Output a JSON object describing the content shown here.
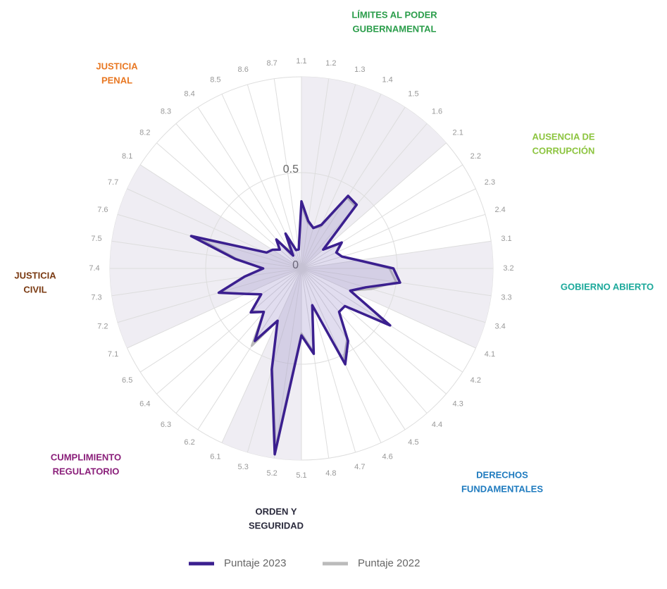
{
  "chart_data": {
    "type": "radar",
    "categories": [
      "1.1",
      "1.2",
      "1.3",
      "1.4",
      "1.5",
      "1.6",
      "2.1",
      "2.2",
      "2.3",
      "2.4",
      "3.1",
      "3.2",
      "3.3",
      "3.4",
      "4.1",
      "4.2",
      "4.3",
      "4.4",
      "4.5",
      "4.6",
      "4.7",
      "4.8",
      "5.1",
      "5.2",
      "5.3",
      "6.1",
      "6.2",
      "6.3",
      "6.4",
      "6.5",
      "7.1",
      "7.2",
      "7.3",
      "7.4",
      "7.5",
      "7.6",
      "7.7",
      "8.1",
      "8.2",
      "8.3",
      "8.4",
      "8.5",
      "8.6",
      "8.7"
    ],
    "series": [
      {
        "name": "Puntaje 2023",
        "color": "#3b1f8f",
        "values": [
          0.35,
          0.25,
          0.22,
          0.25,
          0.45,
          0.44,
          0.15,
          0.25,
          0.2,
          0.22,
          0.3,
          0.48,
          0.52,
          0.35,
          0.28,
          0.55,
          0.3,
          0.3,
          0.45,
          0.55,
          0.2,
          0.45,
          0.35,
          0.98,
          0.55,
          0.3,
          0.45,
          0.3,
          0.35,
          0.25,
          0.32,
          0.45,
          0.3,
          0.2,
          0.35,
          0.6,
          0.2,
          0.18,
          0.15,
          0.2,
          0.08,
          0.2,
          0.1,
          0.1
        ]
      },
      {
        "name": "Puntaje 2022",
        "color": "#bbbbbb",
        "values": [
          0.33,
          0.24,
          0.22,
          0.24,
          0.44,
          0.43,
          0.15,
          0.24,
          0.2,
          0.22,
          0.3,
          0.46,
          0.5,
          0.38,
          0.28,
          0.53,
          0.3,
          0.3,
          0.44,
          0.53,
          0.2,
          0.44,
          0.34,
          0.95,
          0.54,
          0.3,
          0.48,
          0.3,
          0.34,
          0.25,
          0.32,
          0.44,
          0.3,
          0.2,
          0.34,
          0.56,
          0.2,
          0.18,
          0.15,
          0.2,
          0.1,
          0.2,
          0.1,
          0.1
        ]
      }
    ],
    "rlim": [
      0,
      1
    ],
    "rticks": [
      0,
      0.5
    ],
    "annotations": [
      {
        "lines": [
          "LÍMITES AL PODER",
          "GUBERNAMENTAL"
        ],
        "color": "#2a9d4a"
      },
      {
        "lines": [
          "AUSENCIA DE",
          "CORRUPCIÓN"
        ],
        "color": "#8cc43f"
      },
      {
        "lines": [
          "GOBIERNO ABIERTO"
        ],
        "color": "#1aa89a"
      },
      {
        "lines": [
          "DERECHOS",
          "FUNDAMENTALES"
        ],
        "color": "#1f7bbf"
      },
      {
        "lines": [
          "ORDEN Y",
          "SEGURIDAD"
        ],
        "color": "#2a2a3c"
      },
      {
        "lines": [
          "CUMPLIMIENTO",
          "REGULATORIO"
        ],
        "color": "#8a1f7a"
      },
      {
        "lines": [
          "JUSTICIA",
          "CIVIL"
        ],
        "color": "#7a3a12"
      },
      {
        "lines": [
          "JUSTICIA",
          "PENAL"
        ],
        "color": "#e87722"
      }
    ]
  }
}
